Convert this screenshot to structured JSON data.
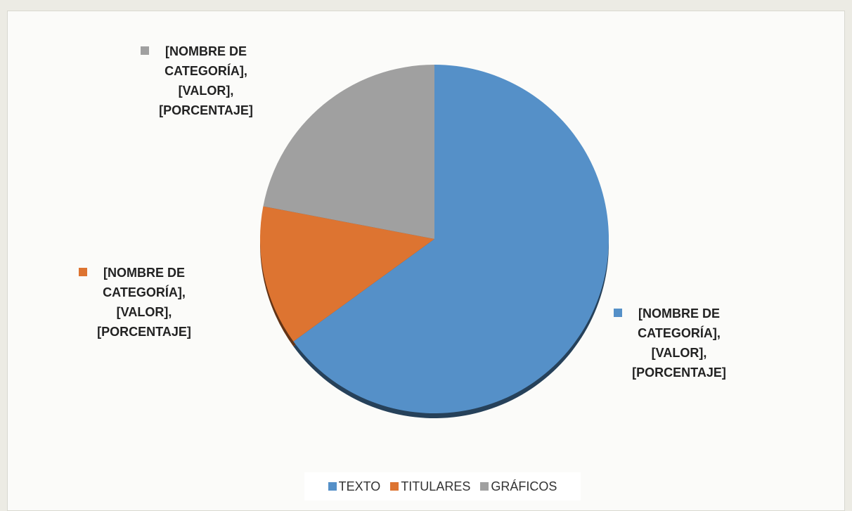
{
  "chart_data": {
    "type": "pie",
    "categories": [
      "TEXTO",
      "TITULARES",
      "GRÁFICOS"
    ],
    "values": [
      65,
      13,
      22
    ],
    "value_labels": [
      "[NOMBRE DE CATEGORÍA], [VALOR], [PORCENTAJE]",
      "[NOMBRE DE CATEGORÍA], [VALOR], [PORCENTAJE]",
      "[NOMBRE DE CATEGORÍA], [VALOR], [PORCENTAJE]"
    ],
    "colors": [
      "#5590c8",
      "#dd7431",
      "#a0a0a0"
    ],
    "legend": "bottom"
  }
}
